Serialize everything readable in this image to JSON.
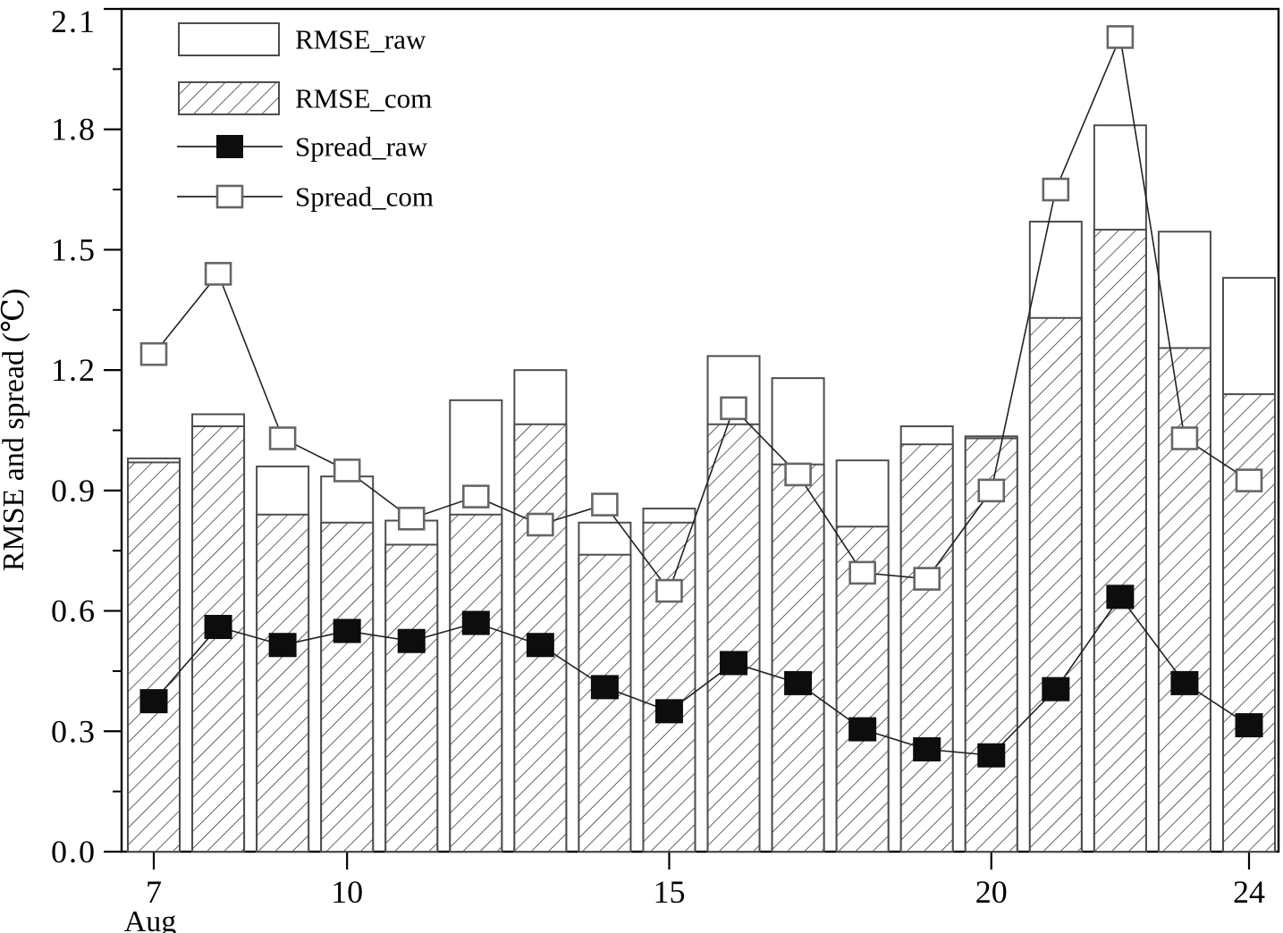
{
  "chart_data": {
    "type": "bar+line combo",
    "title": "",
    "xlabel_month": "Aug",
    "ylabel": "RMSE and spread (℃)",
    "x_days": [
      7,
      8,
      9,
      10,
      11,
      12,
      13,
      14,
      15,
      16,
      17,
      18,
      19,
      20,
      21,
      22,
      23,
      24
    ],
    "xticks_labeled": [
      7,
      10,
      15,
      20,
      24
    ],
    "ylim": [
      0.0,
      2.1
    ],
    "yticks_major": [
      0.0,
      0.3,
      0.6,
      0.9,
      1.2,
      1.5,
      1.8,
      2.1
    ],
    "ytick_minor_step": 0.15,
    "grid": "off",
    "legend_position": "top-left-inside",
    "series": [
      {
        "name": "RMSE_raw",
        "type": "bar",
        "style": "open-bar",
        "values": [
          0.98,
          1.09,
          0.96,
          0.935,
          0.825,
          1.125,
          1.2,
          0.82,
          0.855,
          1.235,
          1.18,
          0.975,
          1.06,
          1.035,
          1.57,
          1.81,
          1.545,
          1.43
        ]
      },
      {
        "name": "RMSE_com",
        "type": "bar",
        "style": "hatched-bar",
        "values": [
          0.97,
          1.06,
          0.84,
          0.82,
          0.765,
          0.84,
          1.065,
          0.74,
          0.82,
          1.065,
          0.965,
          0.81,
          1.015,
          1.03,
          1.33,
          1.55,
          1.255,
          1.14
        ]
      },
      {
        "name": "Spread_raw",
        "type": "line",
        "marker": "filled-square",
        "values": [
          0.375,
          0.56,
          0.515,
          0.55,
          0.525,
          0.57,
          0.515,
          0.41,
          0.35,
          0.47,
          0.42,
          0.305,
          0.255,
          0.24,
          0.405,
          0.635,
          0.42,
          0.315
        ]
      },
      {
        "name": "Spread_com",
        "type": "line",
        "marker": "open-square",
        "values": [
          1.24,
          1.44,
          1.03,
          0.95,
          0.83,
          0.885,
          0.815,
          0.865,
          0.65,
          1.105,
          0.94,
          0.695,
          0.68,
          0.9,
          1.65,
          2.03,
          1.03,
          0.925
        ]
      }
    ],
    "colors": {
      "ink": "#000000",
      "bar_outline": "#4d4d4d",
      "hatch_line": "#222222",
      "open_marker_stroke": "#666666",
      "filled_marker": "#0d0d0d",
      "line": "#222222"
    }
  }
}
